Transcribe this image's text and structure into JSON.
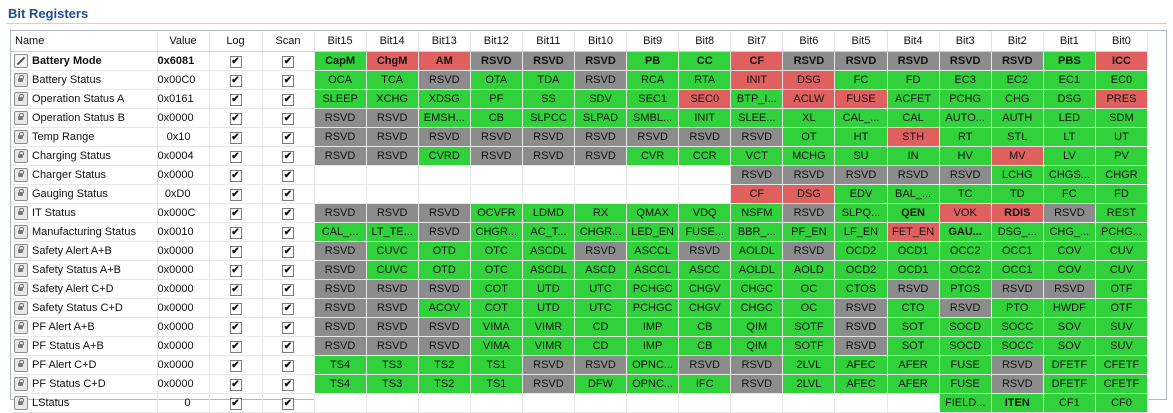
{
  "title": "Bit Registers",
  "headers": [
    "Name",
    "Value",
    "Log",
    "Scan",
    "Bit15",
    "Bit14",
    "Bit13",
    "Bit12",
    "Bit11",
    "Bit10",
    "Bit9",
    "Bit8",
    "Bit7",
    "Bit6",
    "Bit5",
    "Bit4",
    "Bit3",
    "Bit2",
    "Bit1",
    "Bit0"
  ],
  "colors": {
    "set": "#31d13b",
    "reserved": "#8c8c8c",
    "alert": "#e06060",
    "empty": "#ffffff"
  },
  "rows": [
    {
      "name": "Battery Mode",
      "value": "0x6081",
      "icon": "pencil",
      "bold": true,
      "bits": [
        [
          "CapM",
          "g",
          1
        ],
        [
          "ChgM",
          "r",
          1
        ],
        [
          "AM",
          "r",
          1
        ],
        [
          "RSVD",
          "x",
          1
        ],
        [
          "RSVD",
          "x",
          1
        ],
        [
          "RSVD",
          "x",
          1
        ],
        [
          "PB",
          "g",
          1
        ],
        [
          "CC",
          "g",
          1
        ],
        [
          "CF",
          "r",
          1
        ],
        [
          "RSVD",
          "x",
          1
        ],
        [
          "RSVD",
          "x",
          1
        ],
        [
          "RSVD",
          "x",
          1
        ],
        [
          "RSVD",
          "x",
          1
        ],
        [
          "RSVD",
          "x",
          1
        ],
        [
          "PBS",
          "g",
          1
        ],
        [
          "ICC",
          "r",
          1
        ]
      ]
    },
    {
      "name": "Battery Status",
      "value": "0x00C0",
      "icon": "lock",
      "bits": [
        [
          "OCA",
          "g"
        ],
        [
          "TCA",
          "g"
        ],
        [
          "RSVD",
          "x"
        ],
        [
          "OTA",
          "g"
        ],
        [
          "TDA",
          "g"
        ],
        [
          "RSVD",
          "x"
        ],
        [
          "RCA",
          "g"
        ],
        [
          "RTA",
          "g"
        ],
        [
          "INIT",
          "r"
        ],
        [
          "DSG",
          "r"
        ],
        [
          "FC",
          "g"
        ],
        [
          "FD",
          "g"
        ],
        [
          "EC3",
          "g"
        ],
        [
          "EC2",
          "g"
        ],
        [
          "EC1",
          "g"
        ],
        [
          "EC0",
          "g"
        ]
      ]
    },
    {
      "name": "Operation Status A",
      "value": "0x0161",
      "icon": "lock",
      "bits": [
        [
          "SLEEP",
          "g"
        ],
        [
          "XCHG",
          "g"
        ],
        [
          "XDSG",
          "g"
        ],
        [
          "PF",
          "g"
        ],
        [
          "SS",
          "g"
        ],
        [
          "SDV",
          "g"
        ],
        [
          "SEC1",
          "g"
        ],
        [
          "SEC0",
          "r"
        ],
        [
          "BTP_I...",
          "g"
        ],
        [
          "ACLW",
          "r"
        ],
        [
          "FUSE",
          "r"
        ],
        [
          "ACFET",
          "g"
        ],
        [
          "PCHG",
          "g"
        ],
        [
          "CHG",
          "g"
        ],
        [
          "DSG",
          "g"
        ],
        [
          "PRES",
          "r"
        ]
      ]
    },
    {
      "name": "Operation Status B",
      "value": "0x0000",
      "icon": "lock",
      "bits": [
        [
          "RSVD",
          "x"
        ],
        [
          "RSVD",
          "x"
        ],
        [
          "EMSH...",
          "g"
        ],
        [
          "CB",
          "g"
        ],
        [
          "SLPCC",
          "g"
        ],
        [
          "SLPAD",
          "g"
        ],
        [
          "SMBL...",
          "g"
        ],
        [
          "INIT",
          "g"
        ],
        [
          "SLEE...",
          "g"
        ],
        [
          "XL",
          "g"
        ],
        [
          "CAL_...",
          "g"
        ],
        [
          "CAL",
          "g"
        ],
        [
          "AUTO...",
          "g"
        ],
        [
          "AUTH",
          "g"
        ],
        [
          "LED",
          "g"
        ],
        [
          "SDM",
          "g"
        ]
      ]
    },
    {
      "name": "Temp Range",
      "value": "0x10",
      "icon": "lock",
      "bits": [
        [
          "RSVD",
          "x"
        ],
        [
          "RSVD",
          "x"
        ],
        [
          "RSVD",
          "x"
        ],
        [
          "RSVD",
          "x"
        ],
        [
          "RSVD",
          "x"
        ],
        [
          "RSVD",
          "x"
        ],
        [
          "RSVD",
          "x"
        ],
        [
          "RSVD",
          "x"
        ],
        [
          "RSVD",
          "x"
        ],
        [
          "OT",
          "g"
        ],
        [
          "HT",
          "g"
        ],
        [
          "STH",
          "r"
        ],
        [
          "RT",
          "g"
        ],
        [
          "STL",
          "g"
        ],
        [
          "LT",
          "g"
        ],
        [
          "UT",
          "g"
        ]
      ]
    },
    {
      "name": "Charging Status",
      "value": "0x0004",
      "icon": "lock",
      "bits": [
        [
          "RSVD",
          "x"
        ],
        [
          "RSVD",
          "x"
        ],
        [
          "CVRD",
          "g"
        ],
        [
          "RSVD",
          "x"
        ],
        [
          "RSVD",
          "x"
        ],
        [
          "RSVD",
          "x"
        ],
        [
          "CVR",
          "g"
        ],
        [
          "CCR",
          "g"
        ],
        [
          "VCT",
          "g"
        ],
        [
          "MCHG",
          "g"
        ],
        [
          "SU",
          "g"
        ],
        [
          "IN",
          "g"
        ],
        [
          "HV",
          "g"
        ],
        [
          "MV",
          "r"
        ],
        [
          "LV",
          "g"
        ],
        [
          "PV",
          "g"
        ]
      ]
    },
    {
      "name": "Charger Status",
      "value": "0x0000",
      "icon": "lock",
      "bits": [
        [
          "",
          "e"
        ],
        [
          "",
          "e"
        ],
        [
          "",
          "e"
        ],
        [
          "",
          "e"
        ],
        [
          "",
          "e"
        ],
        [
          "",
          "e"
        ],
        [
          "",
          "e"
        ],
        [
          "",
          "e"
        ],
        [
          "RSVD",
          "x"
        ],
        [
          "RSVD",
          "x"
        ],
        [
          "RSVD",
          "x"
        ],
        [
          "RSVD",
          "x"
        ],
        [
          "RSVD",
          "x"
        ],
        [
          "LCHG",
          "g"
        ],
        [
          "CHGS...",
          "g"
        ],
        [
          "CHGR",
          "g"
        ]
      ]
    },
    {
      "name": "Gauging Status",
      "value": "0xD0",
      "icon": "lock",
      "bits": [
        [
          "",
          "e"
        ],
        [
          "",
          "e"
        ],
        [
          "",
          "e"
        ],
        [
          "",
          "e"
        ],
        [
          "",
          "e"
        ],
        [
          "",
          "e"
        ],
        [
          "",
          "e"
        ],
        [
          "",
          "e"
        ],
        [
          "CF",
          "r"
        ],
        [
          "DSG",
          "r"
        ],
        [
          "EDV",
          "g"
        ],
        [
          "BAL_...",
          "g"
        ],
        [
          "TC",
          "g"
        ],
        [
          "TD",
          "g"
        ],
        [
          "FC",
          "g"
        ],
        [
          "FD",
          "g"
        ]
      ]
    },
    {
      "name": "IT Status",
      "value": "0x000C",
      "icon": "lock",
      "bits": [
        [
          "RSVD",
          "x"
        ],
        [
          "RSVD",
          "x"
        ],
        [
          "RSVD",
          "x"
        ],
        [
          "OCVFR",
          "g"
        ],
        [
          "LDMD",
          "g"
        ],
        [
          "RX",
          "g"
        ],
        [
          "QMAX",
          "g"
        ],
        [
          "VDQ",
          "g"
        ],
        [
          "NSFM",
          "g"
        ],
        [
          "RSVD",
          "x"
        ],
        [
          "SLPQ...",
          "g"
        ],
        [
          "QEN",
          "g",
          1
        ],
        [
          "VOK",
          "r"
        ],
        [
          "RDIS",
          "r",
          1
        ],
        [
          "RSVD",
          "x"
        ],
        [
          "REST",
          "g"
        ]
      ]
    },
    {
      "name": "Manufacturing Status",
      "value": "0x0010",
      "icon": "lock",
      "bits": [
        [
          "CAL_...",
          "g"
        ],
        [
          "LT_TE...",
          "g"
        ],
        [
          "RSVD",
          "x"
        ],
        [
          "CHGR...",
          "g"
        ],
        [
          "AC_T...",
          "g"
        ],
        [
          "CHGR...",
          "g"
        ],
        [
          "LED_EN",
          "g"
        ],
        [
          "FUSE...",
          "g"
        ],
        [
          "BBR_...",
          "g"
        ],
        [
          "PF_EN",
          "g"
        ],
        [
          "LF_EN",
          "g"
        ],
        [
          "FET_EN",
          "r"
        ],
        [
          "GAU...",
          "g",
          1
        ],
        [
          "DSG_...",
          "g"
        ],
        [
          "CHG_...",
          "g"
        ],
        [
          "PCHG...",
          "g"
        ]
      ]
    },
    {
      "name": "Safety Alert A+B",
      "value": "0x0000",
      "icon": "lock",
      "bits": [
        [
          "RSVD",
          "x"
        ],
        [
          "CUVC",
          "g"
        ],
        [
          "OTD",
          "g"
        ],
        [
          "OTC",
          "g"
        ],
        [
          "ASCDL",
          "g"
        ],
        [
          "RSVD",
          "x"
        ],
        [
          "ASCCL",
          "g"
        ],
        [
          "RSVD",
          "x"
        ],
        [
          "AOLDL",
          "g"
        ],
        [
          "RSVD",
          "x"
        ],
        [
          "OCD2",
          "g"
        ],
        [
          "OCD1",
          "g"
        ],
        [
          "OCC2",
          "g"
        ],
        [
          "OCC1",
          "g"
        ],
        [
          "COV",
          "g"
        ],
        [
          "CUV",
          "g"
        ]
      ]
    },
    {
      "name": "Safety Status A+B",
      "value": "0x0000",
      "icon": "lock",
      "bits": [
        [
          "RSVD",
          "x"
        ],
        [
          "CUVC",
          "g"
        ],
        [
          "OTD",
          "g"
        ],
        [
          "OTC",
          "g"
        ],
        [
          "ASCDL",
          "g"
        ],
        [
          "ASCD",
          "g"
        ],
        [
          "ASCCL",
          "g"
        ],
        [
          "ASCC",
          "g"
        ],
        [
          "AOLDL",
          "g"
        ],
        [
          "AOLD",
          "g"
        ],
        [
          "OCD2",
          "g"
        ],
        [
          "OCD1",
          "g"
        ],
        [
          "OCC2",
          "g"
        ],
        [
          "OCC1",
          "g"
        ],
        [
          "COV",
          "g"
        ],
        [
          "CUV",
          "g"
        ]
      ]
    },
    {
      "name": "Safety Alert C+D",
      "value": "0x0000",
      "icon": "lock",
      "bits": [
        [
          "RSVD",
          "x"
        ],
        [
          "RSVD",
          "x"
        ],
        [
          "RSVD",
          "x"
        ],
        [
          "COT",
          "g"
        ],
        [
          "UTD",
          "g"
        ],
        [
          "UTC",
          "g"
        ],
        [
          "PCHGC",
          "g"
        ],
        [
          "CHGV",
          "g"
        ],
        [
          "CHGC",
          "g"
        ],
        [
          "OC",
          "g"
        ],
        [
          "CTOS",
          "g"
        ],
        [
          "RSVD",
          "x"
        ],
        [
          "PTOS",
          "g"
        ],
        [
          "RSVD",
          "x"
        ],
        [
          "RSVD",
          "x"
        ],
        [
          "OTF",
          "g"
        ]
      ]
    },
    {
      "name": "Safety Status C+D",
      "value": "0x0000",
      "icon": "lock",
      "bits": [
        [
          "RSVD",
          "x"
        ],
        [
          "RSVD",
          "x"
        ],
        [
          "ACOV",
          "g"
        ],
        [
          "COT",
          "g"
        ],
        [
          "UTD",
          "g"
        ],
        [
          "UTC",
          "g"
        ],
        [
          "PCHGC",
          "g"
        ],
        [
          "CHGV",
          "g"
        ],
        [
          "CHGC",
          "g"
        ],
        [
          "OC",
          "g"
        ],
        [
          "RSVD",
          "x"
        ],
        [
          "CTO",
          "g"
        ],
        [
          "RSVD",
          "x"
        ],
        [
          "PTO",
          "g"
        ],
        [
          "HWDF",
          "g"
        ],
        [
          "OTF",
          "g"
        ]
      ]
    },
    {
      "name": "PF Alert A+B",
      "value": "0x0000",
      "icon": "lock",
      "bits": [
        [
          "RSVD",
          "x"
        ],
        [
          "RSVD",
          "x"
        ],
        [
          "RSVD",
          "x"
        ],
        [
          "VIMA",
          "g"
        ],
        [
          "VIMR",
          "g"
        ],
        [
          "CD",
          "g"
        ],
        [
          "IMP",
          "g"
        ],
        [
          "CB",
          "g"
        ],
        [
          "QIM",
          "g"
        ],
        [
          "SOTF",
          "g"
        ],
        [
          "RSVD",
          "x"
        ],
        [
          "SOT",
          "g"
        ],
        [
          "SOCD",
          "g"
        ],
        [
          "SOCC",
          "g"
        ],
        [
          "SOV",
          "g"
        ],
        [
          "SUV",
          "g"
        ]
      ]
    },
    {
      "name": "PF Status A+B",
      "value": "0x0000",
      "icon": "lock",
      "bits": [
        [
          "RSVD",
          "x"
        ],
        [
          "RSVD",
          "x"
        ],
        [
          "RSVD",
          "x"
        ],
        [
          "VIMA",
          "g"
        ],
        [
          "VIMR",
          "g"
        ],
        [
          "CD",
          "g"
        ],
        [
          "IMP",
          "g"
        ],
        [
          "CB",
          "g"
        ],
        [
          "QIM",
          "g"
        ],
        [
          "SOTF",
          "g"
        ],
        [
          "RSVD",
          "x"
        ],
        [
          "SOT",
          "g"
        ],
        [
          "SOCD",
          "g"
        ],
        [
          "SOCC",
          "g"
        ],
        [
          "SOV",
          "g"
        ],
        [
          "SUV",
          "g"
        ]
      ]
    },
    {
      "name": "PF Alert C+D",
      "value": "0x0000",
      "icon": "lock",
      "bits": [
        [
          "TS4",
          "g"
        ],
        [
          "TS3",
          "g"
        ],
        [
          "TS2",
          "g"
        ],
        [
          "TS1",
          "g"
        ],
        [
          "RSVD",
          "x"
        ],
        [
          "RSVD",
          "x"
        ],
        [
          "OPNC...",
          "g"
        ],
        [
          "RSVD",
          "x"
        ],
        [
          "RSVD",
          "x"
        ],
        [
          "2LVL",
          "g"
        ],
        [
          "AFEC",
          "g"
        ],
        [
          "AFER",
          "g"
        ],
        [
          "FUSE",
          "g"
        ],
        [
          "RSVD",
          "x"
        ],
        [
          "DFETF",
          "g"
        ],
        [
          "CFETF",
          "g"
        ]
      ]
    },
    {
      "name": "PF Status C+D",
      "value": "0x0000",
      "icon": "lock",
      "bits": [
        [
          "TS4",
          "g"
        ],
        [
          "TS3",
          "g"
        ],
        [
          "TS2",
          "g"
        ],
        [
          "TS1",
          "g"
        ],
        [
          "RSVD",
          "x"
        ],
        [
          "DFW",
          "g"
        ],
        [
          "OPNC...",
          "g"
        ],
        [
          "IFC",
          "g"
        ],
        [
          "RSVD",
          "x"
        ],
        [
          "2LVL",
          "g"
        ],
        [
          "AFEC",
          "g"
        ],
        [
          "AFER",
          "g"
        ],
        [
          "FUSE",
          "g"
        ],
        [
          "RSVD",
          "x"
        ],
        [
          "DFETF",
          "g"
        ],
        [
          "CFETF",
          "g"
        ]
      ]
    },
    {
      "name": "LStatus",
      "value": "0",
      "icon": "lock",
      "bits": [
        [
          "",
          "e"
        ],
        [
          "",
          "e"
        ],
        [
          "",
          "e"
        ],
        [
          "",
          "e"
        ],
        [
          "",
          "e"
        ],
        [
          "",
          "e"
        ],
        [
          "",
          "e"
        ],
        [
          "",
          "e"
        ],
        [
          "",
          "e"
        ],
        [
          "",
          "e"
        ],
        [
          "",
          "e"
        ],
        [
          "",
          "e"
        ],
        [
          "FIELD...",
          "g"
        ],
        [
          "ITEN",
          "g",
          1
        ],
        [
          "CF1",
          "g"
        ],
        [
          "CF0",
          "g"
        ]
      ]
    }
  ]
}
